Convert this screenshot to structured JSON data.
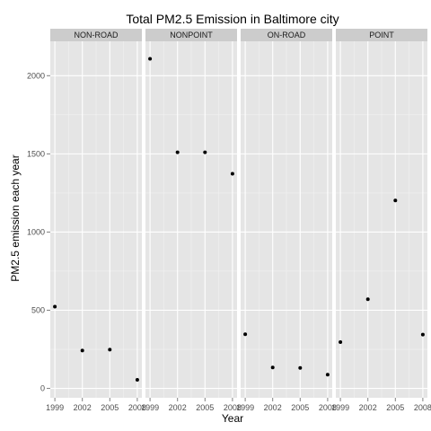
{
  "chart_data": {
    "type": "scatter",
    "title": "Total PM2.5 Emission in Baltimore city",
    "xlabel": "Year",
    "ylabel": "PM2.5 emission each year",
    "x": [
      1999,
      2002,
      2005,
      2008
    ],
    "x_tick_labels": [
      "1999",
      "2002",
      "2005",
      "2008"
    ],
    "xlim": [
      1998.5,
      2008.5
    ],
    "y_ticks": [
      0,
      500,
      1000,
      1500,
      2000
    ],
    "y_tick_labels": [
      "0",
      "500",
      "1000",
      "1500",
      "2000"
    ],
    "ylim": [
      -60,
      2220
    ],
    "facet_by": "type",
    "grid": true,
    "panels": [
      {
        "name": "NON-ROAD",
        "values": [
          523,
          242,
          248,
          55
        ]
      },
      {
        "name": "NONPOINT",
        "values": [
          2108,
          1510,
          1510,
          1373
        ]
      },
      {
        "name": "ON-ROAD",
        "values": [
          346,
          134,
          131,
          88
        ]
      },
      {
        "name": "POINT",
        "values": [
          296,
          570,
          1202,
          344
        ]
      }
    ]
  },
  "colors": {
    "panel_background": "#e5e5e5",
    "strip_background": "#cccccc",
    "grid_major": "#ffffff",
    "grid_minor": "#f2f2f2",
    "point": "#000000"
  }
}
